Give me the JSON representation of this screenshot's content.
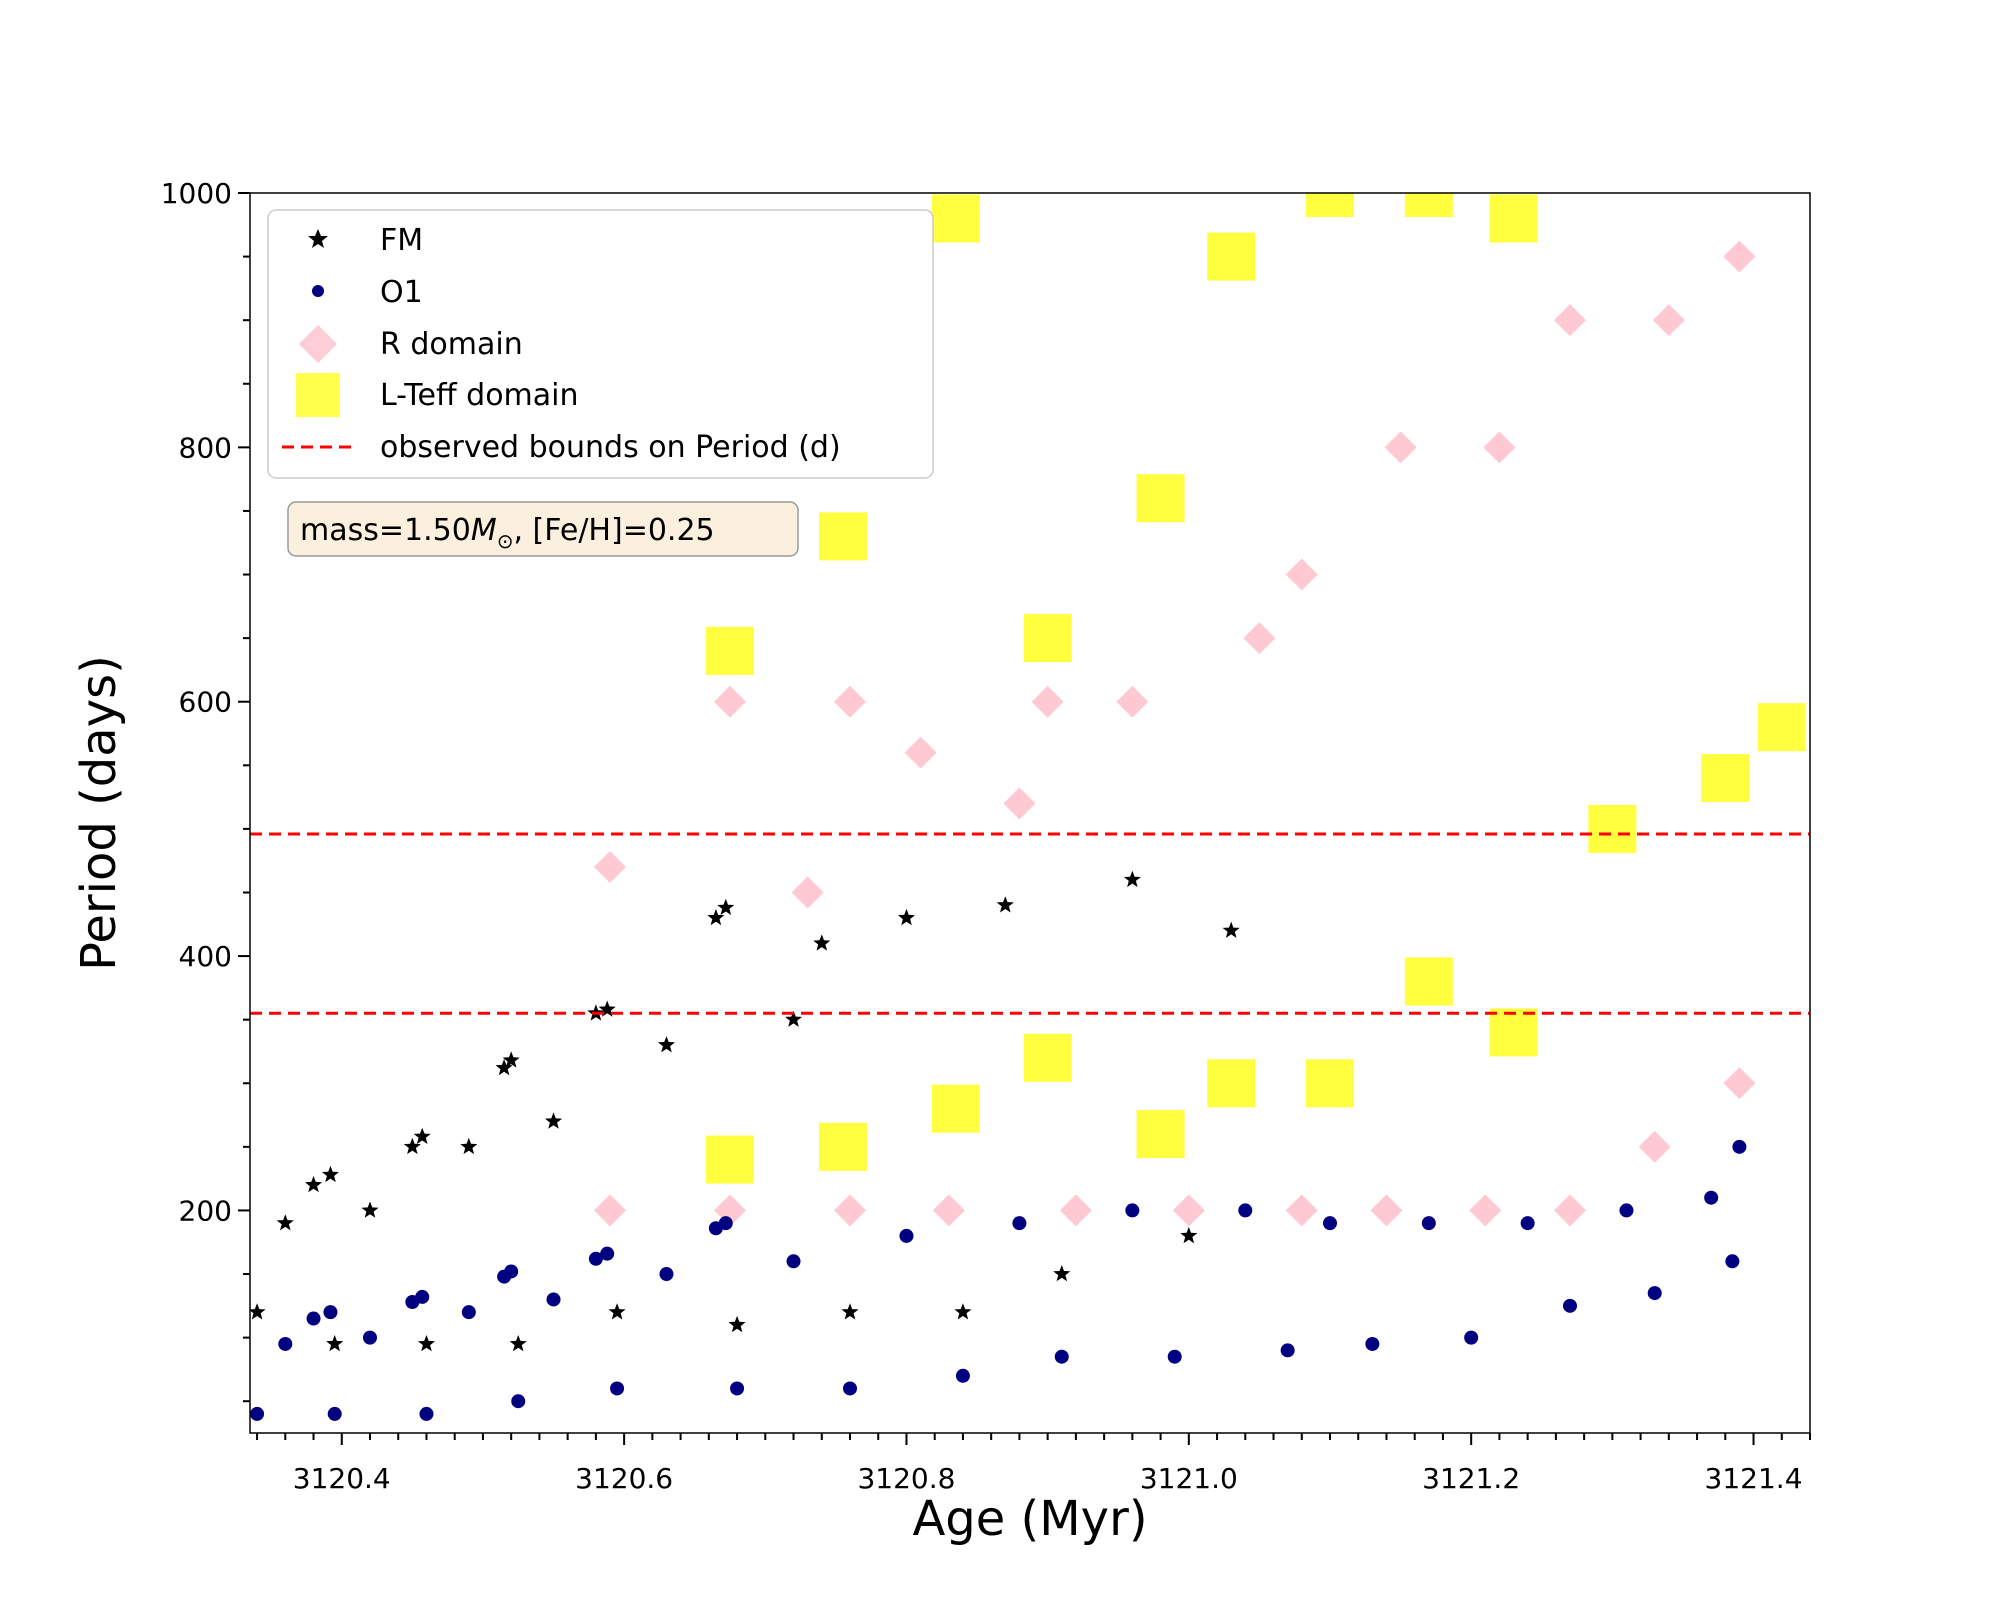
{
  "chart_data": {
    "type": "scatter",
    "title": "",
    "xlabel": "Age (Myr)",
    "ylabel": "Period (days)",
    "xlim": [
      3120.335,
      3121.44
    ],
    "ylim": [
      25,
      1000
    ],
    "xticks": [
      3120.4,
      3120.6,
      3120.8,
      3121.0,
      3121.2,
      3121.4
    ],
    "yticks": [
      200,
      400,
      600,
      800,
      1000
    ],
    "grid": false,
    "legend_position": "upper-left",
    "legend": [
      {
        "label": "FM",
        "marker": "star",
        "color": "#000000"
      },
      {
        "label": "O1",
        "marker": "circle",
        "color": "#000080"
      },
      {
        "label": "R domain",
        "marker": "diamond",
        "color": "#ffc0cb"
      },
      {
        "label": "L-Teff domain",
        "marker": "square",
        "color": "#ffff00"
      },
      {
        "label": "observed bounds on Period (d)",
        "marker": "dashed-line",
        "color": "#ff0000"
      }
    ],
    "annotation": {
      "prefix": "mass=1.50",
      "symbol": "M",
      "subscript": "⊙",
      "suffix": ", [Fe/H]=0.25"
    },
    "observed_bounds": [
      355,
      496
    ],
    "series": [
      {
        "name": "FM",
        "color": "#000000",
        "points": [
          {
            "x": 3120.34,
            "y": 120
          },
          {
            "x": 3120.36,
            "y": 190
          },
          {
            "x": 3120.38,
            "y": 220
          },
          {
            "x": 3120.392,
            "y": 228
          },
          {
            "x": 3120.395,
            "y": 95
          },
          {
            "x": 3120.42,
            "y": 200
          },
          {
            "x": 3120.45,
            "y": 250
          },
          {
            "x": 3120.457,
            "y": 258
          },
          {
            "x": 3120.46,
            "y": 95
          },
          {
            "x": 3120.49,
            "y": 250
          },
          {
            "x": 3120.515,
            "y": 312
          },
          {
            "x": 3120.52,
            "y": 318
          },
          {
            "x": 3120.525,
            "y": 95
          },
          {
            "x": 3120.55,
            "y": 270
          },
          {
            "x": 3120.58,
            "y": 355
          },
          {
            "x": 3120.588,
            "y": 358
          },
          {
            "x": 3120.595,
            "y": 120
          },
          {
            "x": 3120.63,
            "y": 330
          },
          {
            "x": 3120.665,
            "y": 430
          },
          {
            "x": 3120.672,
            "y": 438
          },
          {
            "x": 3120.68,
            "y": 110
          },
          {
            "x": 3120.72,
            "y": 350
          },
          {
            "x": 3120.74,
            "y": 410
          },
          {
            "x": 3120.76,
            "y": 120
          },
          {
            "x": 3120.8,
            "y": 430
          },
          {
            "x": 3120.84,
            "y": 120
          },
          {
            "x": 3120.87,
            "y": 440
          },
          {
            "x": 3120.91,
            "y": 150
          },
          {
            "x": 3120.96,
            "y": 460
          },
          {
            "x": 3121.0,
            "y": 180
          },
          {
            "x": 3121.03,
            "y": 420
          }
        ]
      },
      {
        "name": "O1",
        "color": "#000080",
        "points": [
          {
            "x": 3120.34,
            "y": 40
          },
          {
            "x": 3120.36,
            "y": 95
          },
          {
            "x": 3120.38,
            "y": 115
          },
          {
            "x": 3120.392,
            "y": 120
          },
          {
            "x": 3120.395,
            "y": 40
          },
          {
            "x": 3120.42,
            "y": 100
          },
          {
            "x": 3120.45,
            "y": 128
          },
          {
            "x": 3120.457,
            "y": 132
          },
          {
            "x": 3120.46,
            "y": 40
          },
          {
            "x": 3120.49,
            "y": 120
          },
          {
            "x": 3120.515,
            "y": 148
          },
          {
            "x": 3120.52,
            "y": 152
          },
          {
            "x": 3120.525,
            "y": 50
          },
          {
            "x": 3120.55,
            "y": 130
          },
          {
            "x": 3120.58,
            "y": 162
          },
          {
            "x": 3120.588,
            "y": 166
          },
          {
            "x": 3120.595,
            "y": 60
          },
          {
            "x": 3120.63,
            "y": 150
          },
          {
            "x": 3120.665,
            "y": 186
          },
          {
            "x": 3120.672,
            "y": 190
          },
          {
            "x": 3120.68,
            "y": 60
          },
          {
            "x": 3120.72,
            "y": 160
          },
          {
            "x": 3120.76,
            "y": 60
          },
          {
            "x": 3120.8,
            "y": 180
          },
          {
            "x": 3120.84,
            "y": 70
          },
          {
            "x": 3120.88,
            "y": 190
          },
          {
            "x": 3120.91,
            "y": 85
          },
          {
            "x": 3120.96,
            "y": 200
          },
          {
            "x": 3120.99,
            "y": 85
          },
          {
            "x": 3121.04,
            "y": 200
          },
          {
            "x": 3121.07,
            "y": 90
          },
          {
            "x": 3121.1,
            "y": 190
          },
          {
            "x": 3121.13,
            "y": 95
          },
          {
            "x": 3121.17,
            "y": 190
          },
          {
            "x": 3121.2,
            "y": 100
          },
          {
            "x": 3121.24,
            "y": 190
          },
          {
            "x": 3121.27,
            "y": 125
          },
          {
            "x": 3121.31,
            "y": 200
          },
          {
            "x": 3121.33,
            "y": 135
          },
          {
            "x": 3121.37,
            "y": 210
          },
          {
            "x": 3121.385,
            "y": 160
          },
          {
            "x": 3121.39,
            "y": 250
          }
        ]
      },
      {
        "name": "R domain",
        "color": "#ffc0cb",
        "points": [
          {
            "x": 3120.59,
            "y": 200
          },
          {
            "x": 3120.59,
            "y": 470
          },
          {
            "x": 3120.675,
            "y": 200
          },
          {
            "x": 3120.675,
            "y": 600
          },
          {
            "x": 3120.73,
            "y": 450
          },
          {
            "x": 3120.76,
            "y": 200
          },
          {
            "x": 3120.76,
            "y": 600
          },
          {
            "x": 3120.81,
            "y": 560
          },
          {
            "x": 3120.83,
            "y": 200
          },
          {
            "x": 3120.88,
            "y": 520
          },
          {
            "x": 3120.9,
            "y": 600
          },
          {
            "x": 3120.92,
            "y": 200
          },
          {
            "x": 3120.96,
            "y": 600
          },
          {
            "x": 3121.0,
            "y": 200
          },
          {
            "x": 3121.05,
            "y": 650
          },
          {
            "x": 3121.08,
            "y": 200
          },
          {
            "x": 3121.08,
            "y": 700
          },
          {
            "x": 3121.14,
            "y": 200
          },
          {
            "x": 3121.15,
            "y": 800
          },
          {
            "x": 3121.21,
            "y": 200
          },
          {
            "x": 3121.22,
            "y": 800
          },
          {
            "x": 3121.27,
            "y": 200
          },
          {
            "x": 3121.27,
            "y": 900
          },
          {
            "x": 3121.33,
            "y": 250
          },
          {
            "x": 3121.34,
            "y": 900
          },
          {
            "x": 3121.39,
            "y": 300
          },
          {
            "x": 3121.39,
            "y": 950
          }
        ]
      },
      {
        "name": "L-Teff domain",
        "color": "#ffff00",
        "points": [
          {
            "x": 3120.675,
            "y": 240
          },
          {
            "x": 3120.675,
            "y": 640
          },
          {
            "x": 3120.755,
            "y": 250
          },
          {
            "x": 3120.755,
            "y": 730
          },
          {
            "x": 3120.835,
            "y": 280
          },
          {
            "x": 3120.835,
            "y": 980
          },
          {
            "x": 3120.9,
            "y": 320
          },
          {
            "x": 3120.9,
            "y": 650
          },
          {
            "x": 3120.98,
            "y": 260
          },
          {
            "x": 3120.98,
            "y": 760
          },
          {
            "x": 3121.03,
            "y": 300
          },
          {
            "x": 3121.03,
            "y": 950
          },
          {
            "x": 3121.1,
            "y": 300
          },
          {
            "x": 3121.1,
            "y": 1000
          },
          {
            "x": 3121.17,
            "y": 380
          },
          {
            "x": 3121.17,
            "y": 1000
          },
          {
            "x": 3121.23,
            "y": 340
          },
          {
            "x": 3121.23,
            "y": 980
          },
          {
            "x": 3121.3,
            "y": 500
          },
          {
            "x": 3121.38,
            "y": 540
          },
          {
            "x": 3121.42,
            "y": 580
          }
        ]
      }
    ]
  }
}
